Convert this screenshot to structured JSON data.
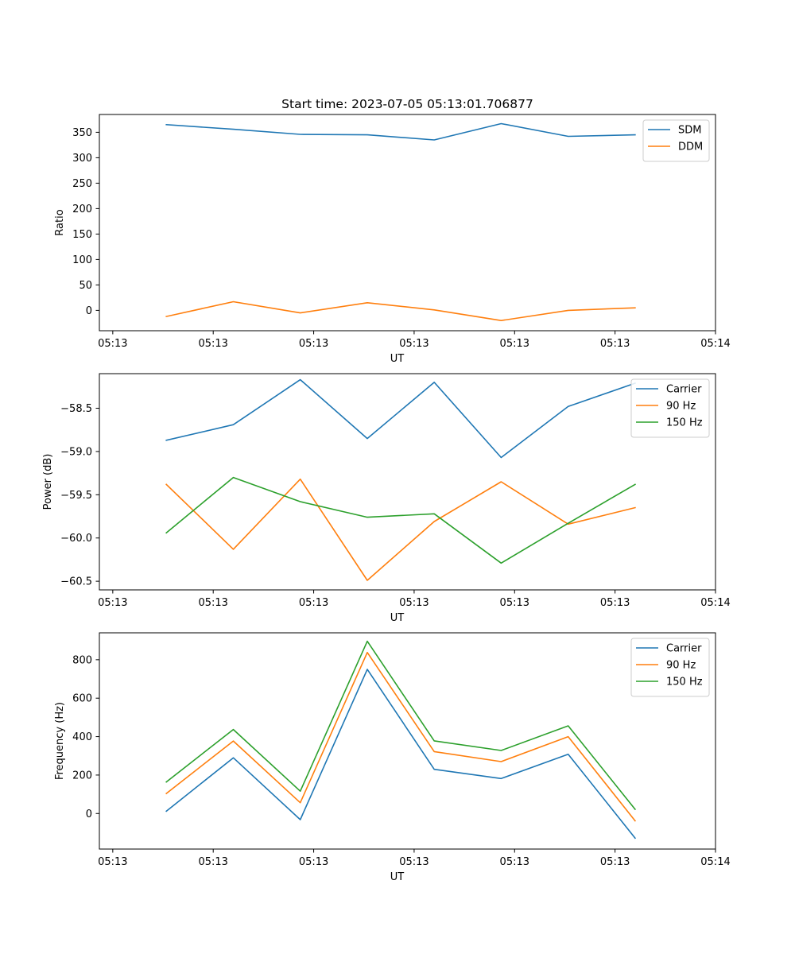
{
  "chart_data": [
    {
      "type": "line",
      "title": "Start time: 2023-07-05 05:13:01.706877",
      "xlabel": "UT",
      "ylabel": "Ratio",
      "xlim": [
        0,
        9.2
      ],
      "x_tick_labels": [
        "05:13",
        "05:13",
        "05:13",
        "05:13",
        "05:13",
        "05:13",
        "05:14"
      ],
      "ylim": [
        -40,
        385
      ],
      "y_ticks": [
        0,
        50,
        100,
        150,
        200,
        250,
        300,
        350
      ],
      "legend_position": "upper-right",
      "x": [
        1,
        2,
        3,
        4,
        5,
        6,
        7,
        8
      ],
      "series": [
        {
          "name": "SDM",
          "color": "#1f77b4",
          "values": [
            365,
            356,
            346,
            345,
            335,
            367,
            342,
            345
          ]
        },
        {
          "name": "DDM",
          "color": "#ff7f0e",
          "values": [
            -12,
            17,
            -5,
            15,
            1,
            -20,
            0,
            5
          ]
        }
      ]
    },
    {
      "type": "line",
      "title": "",
      "xlabel": "UT",
      "ylabel": "Power (dB)",
      "xlim": [
        0,
        9.2
      ],
      "x_tick_labels": [
        "05:13",
        "05:13",
        "05:13",
        "05:13",
        "05:13",
        "05:13",
        "05:14"
      ],
      "ylim": [
        -60.6,
        -58.1
      ],
      "y_ticks": [
        -60.5,
        -60.0,
        -59.5,
        -59.0,
        -58.5
      ],
      "y_tick_labels": [
        "−60.5",
        "−60.0",
        "−59.5",
        "−59.0",
        "−58.5"
      ],
      "legend_position": "upper-right",
      "x": [
        1,
        2,
        3,
        4,
        5,
        6,
        7,
        8
      ],
      "series": [
        {
          "name": "Carrier",
          "color": "#1f77b4",
          "values": [
            -58.87,
            -58.69,
            -58.17,
            -58.85,
            -58.2,
            -59.07,
            -58.48,
            -58.21
          ]
        },
        {
          "name": "90 Hz",
          "color": "#ff7f0e",
          "values": [
            -59.38,
            -60.13,
            -59.32,
            -60.49,
            -59.81,
            -59.35,
            -59.84,
            -59.65
          ]
        },
        {
          "name": "150 Hz",
          "color": "#2ca02c",
          "values": [
            -59.94,
            -59.3,
            -59.58,
            -59.76,
            -59.72,
            -60.29,
            -59.83,
            -59.38
          ]
        }
      ]
    },
    {
      "type": "line",
      "title": "",
      "xlabel": "UT",
      "ylabel": "Frequency (Hz)",
      "xlim": [
        0,
        9.2
      ],
      "x_tick_labels": [
        "05:13",
        "05:13",
        "05:13",
        "05:13",
        "05:13",
        "05:13",
        "05:14"
      ],
      "ylim": [
        -185,
        940
      ],
      "y_ticks": [
        0,
        200,
        400,
        600,
        800
      ],
      "legend_position": "upper-right",
      "x": [
        1,
        2,
        3,
        4,
        5,
        6,
        7,
        8
      ],
      "series": [
        {
          "name": "Carrier",
          "color": "#1f77b4",
          "values": [
            12,
            290,
            -32,
            750,
            230,
            182,
            308,
            -128
          ]
        },
        {
          "name": "90 Hz",
          "color": "#ff7f0e",
          "values": [
            104,
            377,
            56,
            838,
            322,
            270,
            400,
            -38
          ]
        },
        {
          "name": "150 Hz",
          "color": "#2ca02c",
          "values": [
            164,
            437,
            116,
            896,
            378,
            328,
            456,
            22
          ]
        }
      ]
    }
  ]
}
